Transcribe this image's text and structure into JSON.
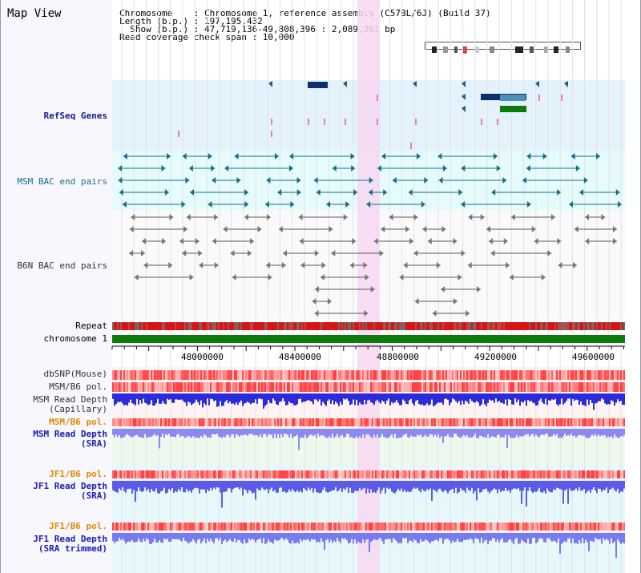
{
  "title": "Map View",
  "info": {
    "line1": "Chromosome    : Chromosome 1, reference assembly (C57BL/6J) (Build 37)",
    "line2": "Length (b.p.) : 197,195,432",
    "line3": "  Show (b.p.) : 47,719,136-49,808,396 : 2,089,261 bp",
    "line4": "Read coverage check span : 10,000"
  },
  "tracks": {
    "refseq": "RefSeq Genes",
    "msm_bac": "MSM BAC end pairs",
    "b6n_bac": "B6N BAC end pairs",
    "repeat": "Repeat",
    "chromosome": "chromosome 1",
    "dbsnp": "dbSNP(Mouse)",
    "msm_b6_pol": "MSM/B6 pol.",
    "msm_depth_cap_1": "MSM Read Depth",
    "msm_depth_cap_2": "(Capillary)",
    "msm_b6_pol2": "MSM/B6 pol.",
    "msm_depth_sra_1": "MSM Read Depth",
    "msm_depth_sra_2": "(SRA)",
    "jf1_b6_pol": "JF1/B6 pol.",
    "jf1_depth_1": "JF1 Read Depth",
    "jf1_depth_2": "(SRA)",
    "jf1_b6_pol2": "JF1/B6 pol.",
    "jf1_trim_1": "JF1 Read Depth",
    "jf1_trim_2": "(SRA trimmed)"
  },
  "axis": {
    "ticks": [
      "48000000",
      "48400000",
      "48800000",
      "49200000",
      "49600000"
    ]
  },
  "colors": {
    "refseq_bg": "#e3f2fb",
    "bac_bg": "#e6fbfb",
    "highlight": "#f7d8f2",
    "chromosome_bar": "#0e7a0e",
    "depth_blue": "#2b2bd9",
    "depth_light": "#6b6bf0"
  }
}
